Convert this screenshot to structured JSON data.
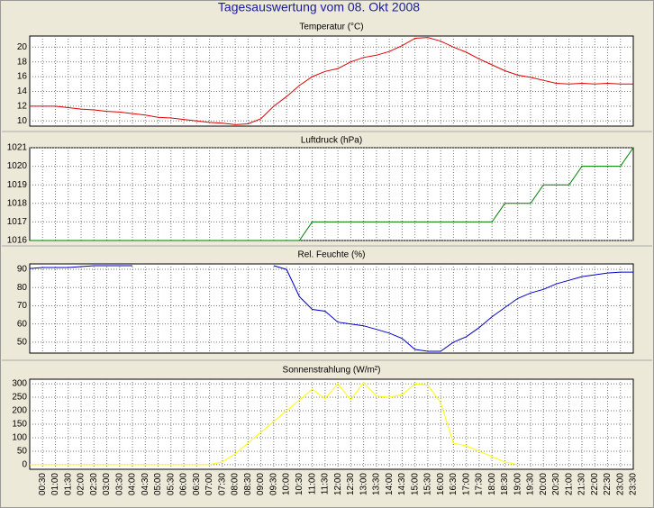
{
  "title": "Tagesauswertung vom 08. Okt 2008",
  "chart_data": [
    {
      "type": "line",
      "title": "Temperatur (°C)",
      "categories": [
        null,
        null,
        null,
        null,
        null,
        null,
        null,
        null,
        null,
        null,
        null,
        null,
        null,
        null,
        null,
        null,
        null,
        null,
        null,
        null,
        null,
        null,
        null,
        null,
        null,
        null,
        null,
        null,
        null,
        null,
        null,
        null,
        null,
        null,
        null,
        null,
        null,
        null,
        null,
        null,
        null,
        null,
        null,
        null,
        null,
        null,
        null,
        null
      ],
      "values": [
        12.0,
        12.0,
        12.0,
        11.8,
        11.6,
        11.5,
        11.3,
        11.2,
        11.0,
        10.8,
        10.5,
        10.4,
        10.2,
        10.0,
        9.8,
        9.7,
        9.5,
        9.6,
        10.3,
        12.0,
        13.3,
        14.8,
        16.0,
        16.7,
        17.1,
        18.0,
        18.6,
        18.9,
        19.4,
        20.2,
        21.2,
        21.3,
        20.8,
        20.0,
        19.3,
        18.4,
        17.6,
        16.8,
        16.2,
        15.9,
        15.5,
        15.1,
        15.0,
        15.1,
        15.0,
        15.1,
        15.0,
        15.0
      ],
      "color": "#e00000",
      "ylim": [
        9.3,
        21.5
      ],
      "yticks": [
        10,
        12,
        14,
        16,
        18,
        20
      ],
      "grid": true
    },
    {
      "type": "line",
      "title": "Luftdruck (hPa)",
      "categories": [
        null,
        null,
        null,
        null,
        null,
        null,
        null,
        null,
        null,
        null,
        null,
        null,
        null,
        null,
        null,
        null,
        null,
        null,
        null,
        null,
        null,
        null,
        null,
        null,
        null,
        null,
        null,
        null,
        null,
        null,
        null,
        null,
        null,
        null,
        null,
        null,
        null,
        null,
        null,
        null,
        null,
        null,
        null,
        null,
        null,
        null,
        null,
        null
      ],
      "values": [
        1016,
        1016,
        1016,
        1016,
        1016,
        1016,
        1016,
        1016,
        1016,
        1016,
        1016,
        1016,
        1016,
        1016,
        1016,
        1016,
        1016,
        1016,
        1016,
        1016,
        1016,
        1016,
        1017,
        1017,
        1017,
        1017,
        1017,
        1017,
        1017,
        1017,
        1017,
        1017,
        1017,
        1017,
        1017,
        1017,
        1017,
        1018,
        1018,
        1018,
        1019,
        1019,
        1019,
        1020,
        1020,
        1020,
        1020,
        1021
      ],
      "color": "#008000",
      "ylim": [
        1016,
        1021
      ],
      "yticks": [
        1016,
        1017,
        1018,
        1019,
        1020,
        1021
      ],
      "grid": true
    },
    {
      "type": "line",
      "title": "Rel. Feuchte (%)",
      "categories": [
        null,
        null,
        null,
        null,
        null,
        null,
        null,
        null,
        null,
        null,
        null,
        null,
        null,
        null,
        null,
        null,
        null,
        null,
        null,
        null,
        null,
        null,
        null,
        null,
        null,
        null,
        null,
        null,
        null,
        null,
        null,
        null,
        null,
        null,
        null,
        null,
        null,
        null,
        null,
        null,
        null,
        null,
        null,
        null,
        null,
        null,
        null,
        null
      ],
      "values": [
        90.5,
        91,
        91,
        91,
        91.5,
        92,
        92,
        92,
        92,
        null,
        null,
        null,
        null,
        null,
        null,
        null,
        null,
        null,
        null,
        92,
        90,
        75,
        68,
        67,
        61,
        60,
        59,
        57,
        55,
        52,
        46,
        45,
        45,
        50,
        53,
        58,
        64,
        69,
        74,
        77,
        79,
        82,
        84,
        86,
        87,
        88,
        88.5,
        88.5
      ],
      "color": "#0000c8",
      "ylim": [
        44,
        93
      ],
      "yticks": [
        50,
        60,
        70,
        80,
        90
      ],
      "grid": true
    },
    {
      "type": "line",
      "title": "Sonnenstrahlung (W/m²)",
      "categories": [
        null,
        "00:30",
        "01:00",
        "01:30",
        "02:00",
        "02:30",
        "03:00",
        "03:30",
        "04:00",
        "04:30",
        "05:00",
        "05:30",
        "06:00",
        "06:30",
        "07:00",
        "07:30",
        "08:00",
        "08:30",
        "09:00",
        "09:30",
        "10:00",
        "10:30",
        "11:00",
        "11:30",
        "12:00",
        "12:30",
        "13:00",
        "13:30",
        "14:00",
        "14:30",
        "15:00",
        "15:30",
        "16:00",
        "16:30",
        "17:00",
        "17:30",
        "18:00",
        "18:30",
        "19:00",
        "19:30",
        "20:00",
        "20:30",
        "21:00",
        "21:30",
        "22:00",
        "22:30",
        "23:00",
        "23:30"
      ],
      "values": [
        0,
        0,
        0,
        0,
        0,
        0,
        0,
        0,
        0,
        0,
        0,
        0,
        0,
        0,
        0,
        10,
        40,
        80,
        120,
        160,
        200,
        240,
        280,
        245,
        300,
        240,
        305,
        255,
        250,
        260,
        300,
        295,
        230,
        80,
        70,
        50,
        30,
        10,
        0,
        null,
        null,
        null,
        null,
        null,
        null,
        null,
        null,
        null
      ],
      "color": "#ffff00",
      "ylim": [
        -17,
        317
      ],
      "yticks": [
        0,
        50,
        100,
        150,
        200,
        250,
        300
      ],
      "grid": true
    }
  ]
}
